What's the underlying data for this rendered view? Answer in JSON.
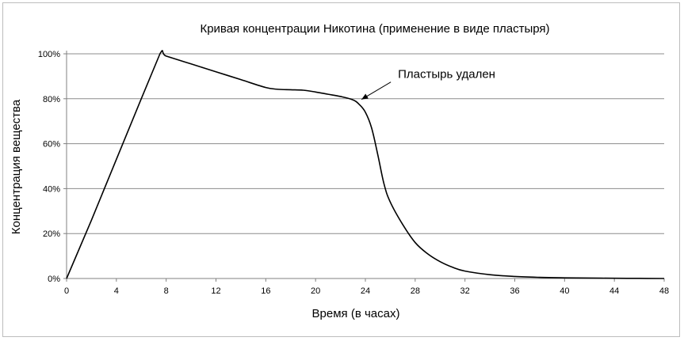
{
  "chart_data": {
    "type": "line",
    "title": "Кривая концентрации Никотина (применение в виде пластыря)",
    "xlabel": "Время (в часах)",
    "ylabel": "Концентрация вещества",
    "xlim": [
      0,
      48
    ],
    "ylim": [
      0,
      100
    ],
    "x_ticks": [
      0,
      4,
      8,
      12,
      16,
      20,
      24,
      28,
      32,
      36,
      40,
      44,
      48
    ],
    "y_ticks": [
      0,
      20,
      40,
      60,
      80,
      100
    ],
    "y_tick_labels": [
      "0%",
      "20%",
      "40%",
      "60%",
      "80%",
      "100%"
    ],
    "grid": "horizontal",
    "legend": "none",
    "line_color": "#000000",
    "series": [
      {
        "x": [
          0,
          2,
          4,
          6,
          7.5,
          8,
          10,
          12,
          14,
          16,
          17,
          18,
          19,
          20,
          21,
          22,
          23,
          23.5,
          24,
          24.5,
          25,
          25.5,
          26,
          27,
          28,
          29,
          30,
          31,
          32,
          34,
          36,
          38,
          40,
          42,
          44,
          46,
          48
        ],
        "y": [
          0,
          26,
          53,
          80,
          100,
          99,
          95.5,
          92,
          88.5,
          85,
          84.2,
          84,
          83.8,
          83,
          82,
          81,
          79.5,
          77.5,
          74,
          67,
          55,
          42,
          34,
          24,
          16,
          11,
          7.5,
          5,
          3.3,
          1.7,
          0.9,
          0.5,
          0.3,
          0.2,
          0.1,
          0.05,
          0
        ]
      }
    ],
    "annotations": [
      {
        "text": "Пластырь удален",
        "x": 23.5,
        "y": 79
      }
    ]
  }
}
